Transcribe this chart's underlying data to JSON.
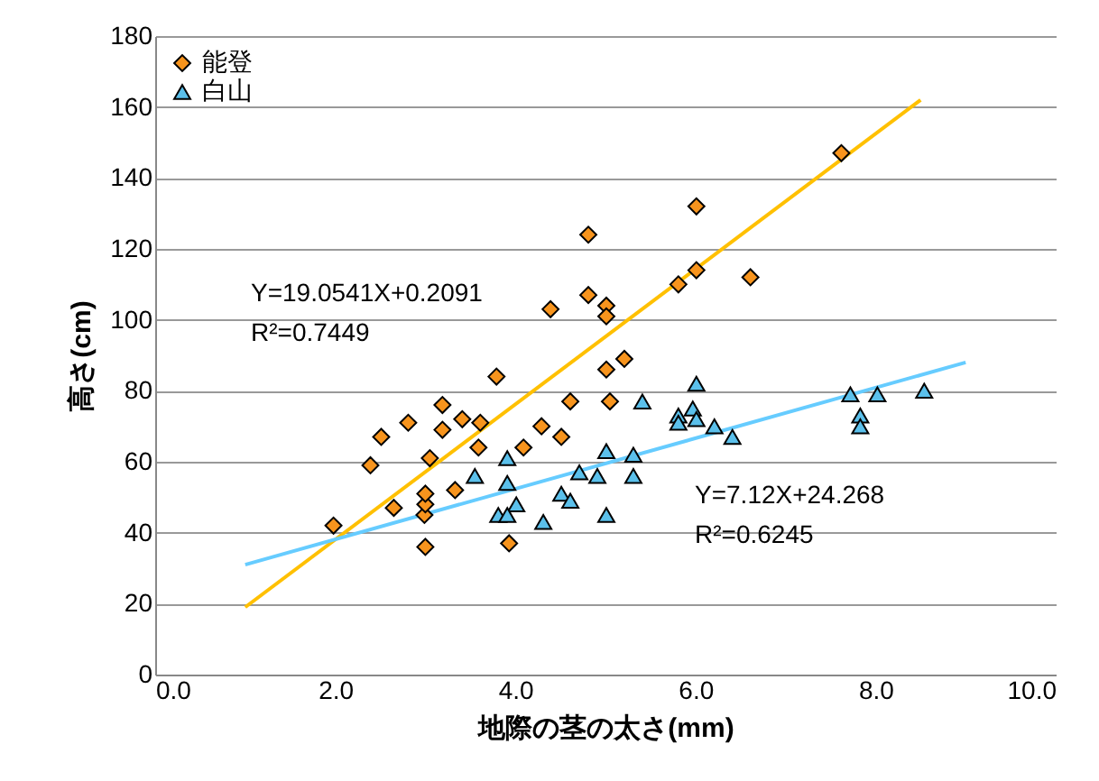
{
  "chart_data": {
    "type": "scatter",
    "xlabel": "地際の茎の太さ(mm)",
    "ylabel": "高さ(cm)",
    "xlim": [
      0,
      10
    ],
    "ylim": [
      0,
      180
    ],
    "xticks": [
      {
        "value": 0,
        "label": "0.0"
      },
      {
        "value": 2,
        "label": "2.0"
      },
      {
        "value": 4,
        "label": "4.0"
      },
      {
        "value": 6,
        "label": "6.0"
      },
      {
        "value": 8,
        "label": "8.0"
      },
      {
        "value": 10,
        "label": "10.0"
      }
    ],
    "yticks": [
      0,
      20,
      40,
      60,
      80,
      100,
      120,
      140,
      160,
      180
    ],
    "grid": "y",
    "legend": "top left",
    "series": [
      {
        "name": "能登",
        "color": "#f7941d",
        "marker": "diamond",
        "x": [
          1.98,
          2.39,
          2.51,
          2.65,
          2.81,
          2.99,
          3.0,
          3.0,
          3.0,
          3.05,
          3.19,
          3.19,
          3.33,
          3.41,
          3.61,
          3.59,
          3.79,
          3.93,
          4.09,
          4.29,
          4.39,
          4.51,
          4.61,
          4.81,
          4.81,
          5.01,
          5.01,
          5.01,
          5.21,
          5.05,
          5.81,
          6.01,
          6.01,
          6.61,
          7.62
        ],
        "values": [
          42,
          59,
          67,
          47,
          71,
          45,
          48,
          51,
          36,
          61,
          76,
          69,
          52,
          72,
          71,
          64,
          84,
          37,
          64,
          70,
          103,
          67,
          77,
          124,
          107,
          104,
          101,
          86,
          89,
          77,
          110,
          132,
          114,
          112,
          147
        ]
      },
      {
        "name": "白山",
        "color": "#5bc0eb",
        "marker": "triangle",
        "x": [
          6.01,
          5.41,
          5.81,
          5.81,
          5.97,
          6.01,
          6.21,
          6.41,
          5.01,
          5.31,
          3.91,
          4.71,
          4.91,
          5.31,
          3.91,
          4.51,
          4.61,
          4.01,
          3.81,
          3.91,
          4.31,
          5.01,
          3.55,
          7.72,
          8.02,
          7.83,
          7.83,
          8.54
        ],
        "values": [
          82,
          77,
          73,
          71,
          75,
          72,
          70,
          67,
          63,
          62,
          61,
          57,
          56,
          56,
          54,
          51,
          49,
          48,
          45,
          45,
          43,
          45,
          56,
          79,
          79,
          73,
          70,
          80
        ]
      },
      {
        "type": "line",
        "color": "#ffc000",
        "x": [
          1.0,
          8.5
        ],
        "values": [
          19,
          162
        ]
      },
      {
        "type": "line",
        "color": "#66ccff",
        "x": [
          1.0,
          9.0
        ],
        "values": [
          31,
          88
        ]
      }
    ],
    "annotations": [
      "Y=19.0541X+0.2091",
      "R²=0.7449",
      "Y=7.12X+24.268",
      "R²=0.6245"
    ]
  }
}
